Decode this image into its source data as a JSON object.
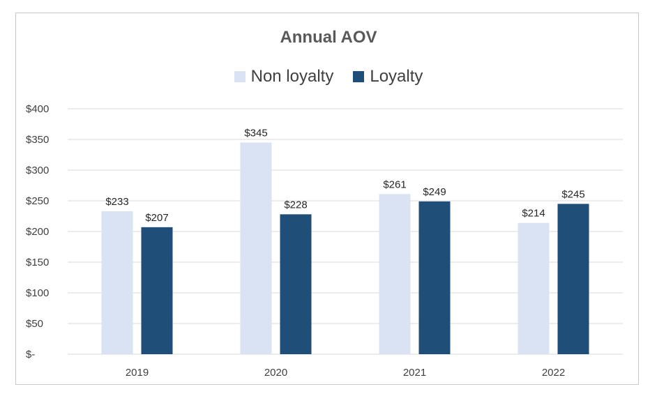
{
  "chart_data": {
    "type": "bar",
    "title": "Annual AOV",
    "categories": [
      "2019",
      "2020",
      "2021",
      "2022"
    ],
    "series": [
      {
        "name": "Non loyalty",
        "color": "#dae3f3",
        "values": [
          233,
          345,
          261,
          214
        ],
        "labels": [
          "$233",
          "$345",
          "$261",
          "$214"
        ]
      },
      {
        "name": "Loyalty",
        "color": "#1f4e79",
        "values": [
          207,
          228,
          249,
          245
        ],
        "labels": [
          "$207",
          "$228",
          "$249",
          "$245"
        ]
      }
    ],
    "ylim": [
      0,
      400
    ],
    "yticks": [
      {
        "value": 0,
        "label": "$-"
      },
      {
        "value": 50,
        "label": "$50"
      },
      {
        "value": 100,
        "label": "$100"
      },
      {
        "value": 150,
        "label": "$150"
      },
      {
        "value": 200,
        "label": "$200"
      },
      {
        "value": 250,
        "label": "$250"
      },
      {
        "value": 300,
        "label": "$300"
      },
      {
        "value": 350,
        "label": "$350"
      },
      {
        "value": 400,
        "label": "$400"
      }
    ],
    "grid": true,
    "legend_position": "top"
  }
}
